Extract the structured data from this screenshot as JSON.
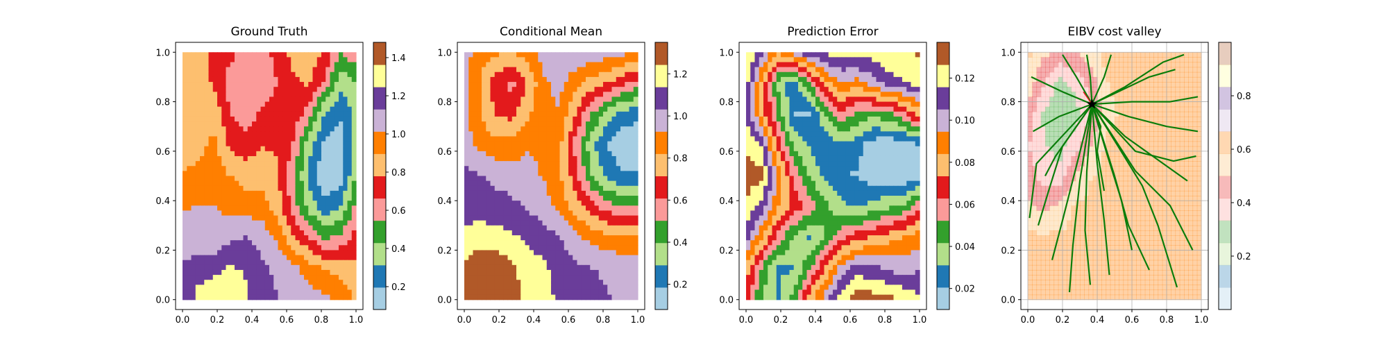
{
  "chart_data": [
    {
      "type": "heatmap",
      "title": "Ground Truth",
      "xlabel": "",
      "ylabel": "",
      "xlim": [
        0,
        1
      ],
      "ylim": [
        0,
        1
      ],
      "xticks": [
        "0.0",
        "0.2",
        "0.4",
        "0.6",
        "0.8",
        "1.0"
      ],
      "yticks": [
        "0.0",
        "0.2",
        "0.4",
        "0.6",
        "0.8",
        "1.0"
      ],
      "colormap": "Paired",
      "colorbar": {
        "range": [
          0.08,
          1.48
        ],
        "ticks": [
          "0.2",
          "0.4",
          "0.6",
          "0.8",
          "1.0",
          "1.2",
          "1.4"
        ],
        "tick_values": [
          0.2,
          0.4,
          0.6,
          0.8,
          1.0,
          1.2,
          1.4
        ]
      },
      "field": [
        [
          0.82,
          0.9,
          0.68,
          0.7,
          0.62,
          0.58,
          0.72,
          0.82,
          0.84,
          0.78,
          0.54,
          0.64
        ],
        [
          0.8,
          0.86,
          0.76,
          0.62,
          0.56,
          0.6,
          0.66,
          0.76,
          0.8,
          0.64,
          0.34,
          0.44
        ],
        [
          0.8,
          0.84,
          0.88,
          0.66,
          0.6,
          0.68,
          0.7,
          0.72,
          0.62,
          0.3,
          0.2,
          0.36
        ],
        [
          0.82,
          0.86,
          0.92,
          0.76,
          0.72,
          0.78,
          0.76,
          0.66,
          0.36,
          0.16,
          0.14,
          0.38
        ],
        [
          0.9,
          0.94,
          0.96,
          0.9,
          0.84,
          0.84,
          0.8,
          0.58,
          0.3,
          0.1,
          0.12,
          0.44
        ],
        [
          1.0,
          1.02,
          1.02,
          0.98,
          0.96,
          0.96,
          0.84,
          0.62,
          0.38,
          0.24,
          0.3,
          0.58
        ],
        [
          1.08,
          1.06,
          1.04,
          1.1,
          1.14,
          1.08,
          1.0,
          0.8,
          0.68,
          0.52,
          0.58,
          0.72
        ],
        [
          1.14,
          1.18,
          1.22,
          1.26,
          1.24,
          1.16,
          1.1,
          1.06,
          0.94,
          0.9,
          0.86,
          0.8
        ],
        [
          1.12,
          1.3,
          1.32,
          1.28,
          1.26,
          1.18,
          1.14,
          1.1,
          1.08,
          1.04,
          0.98,
          0.88
        ]
      ]
    },
    {
      "type": "heatmap",
      "title": "Conditional Mean",
      "xlabel": "",
      "ylabel": "",
      "xlim": [
        0,
        1
      ],
      "ylim": [
        0,
        1
      ],
      "xticks": [
        "0.0",
        "0.2",
        "0.4",
        "0.6",
        "0.8",
        "1.0"
      ],
      "yticks": [
        "0.0",
        "0.2",
        "0.4",
        "0.6",
        "0.8",
        "1.0"
      ],
      "colormap": "Paired",
      "colorbar": {
        "range": [
          0.08,
          1.35
        ],
        "ticks": [
          "0.2",
          "0.4",
          "0.6",
          "0.8",
          "1.0",
          "1.2"
        ],
        "tick_values": [
          0.2,
          0.4,
          0.6,
          0.8,
          1.0,
          1.2
        ]
      },
      "field": [
        [
          0.98,
          0.86,
          0.84,
          0.82,
          0.86,
          0.98,
          1.04,
          1.02,
          1.0,
          0.98,
          0.96,
          0.92
        ],
        [
          0.96,
          0.82,
          0.66,
          0.58,
          0.72,
          0.9,
          0.96,
          0.86,
          0.78,
          0.72,
          0.64,
          0.56
        ],
        [
          0.96,
          0.82,
          0.7,
          0.68,
          0.8,
          0.9,
          0.92,
          0.72,
          0.52,
          0.36,
          0.24,
          0.22
        ],
        [
          0.98,
          0.9,
          0.86,
          0.86,
          0.92,
          0.9,
          0.86,
          0.58,
          0.34,
          0.18,
          0.12,
          0.1
        ],
        [
          1.06,
          1.04,
          1.0,
          0.98,
          0.96,
          0.92,
          0.84,
          0.66,
          0.42,
          0.26,
          0.2,
          0.2
        ],
        [
          1.1,
          1.1,
          1.08,
          1.06,
          1.02,
          0.98,
          0.9,
          0.78,
          0.66,
          0.56,
          0.52,
          0.54
        ],
        [
          1.16,
          1.18,
          1.18,
          1.16,
          1.12,
          1.08,
          1.04,
          0.96,
          0.9,
          0.86,
          0.84,
          0.84
        ],
        [
          1.26,
          1.36,
          1.34,
          1.26,
          1.2,
          1.16,
          1.1,
          1.06,
          1.04,
          1.02,
          1.0,
          0.98
        ],
        [
          1.3,
          1.42,
          1.4,
          1.3,
          1.22,
          1.18,
          1.12,
          1.08,
          1.06,
          1.04,
          1.02,
          1.0
        ]
      ]
    },
    {
      "type": "heatmap",
      "title": "Prediction Error",
      "xlabel": "",
      "ylabel": "",
      "xlim": [
        0,
        1
      ],
      "ylim": [
        0,
        1
      ],
      "xticks": [
        "0.0",
        "0.2",
        "0.4",
        "0.6",
        "0.8",
        "1.0"
      ],
      "yticks": [
        "0.0",
        "0.2",
        "0.4",
        "0.6",
        "0.8",
        "1.0"
      ],
      "colormap": "Paired",
      "colorbar": {
        "range": [
          0.01,
          0.137
        ],
        "ticks": [
          "0.02",
          "0.04",
          "0.06",
          "0.08",
          "0.10",
          "0.12"
        ],
        "tick_values": [
          0.02,
          0.04,
          0.06,
          0.08,
          0.1,
          0.12
        ]
      },
      "field": [
        [
          0.13,
          0.11,
          0.085,
          0.1,
          0.115,
          0.118,
          0.12,
          0.122,
          0.12,
          0.125,
          0.125,
          0.128
        ],
        [
          0.12,
          0.08,
          0.04,
          0.025,
          0.05,
          0.08,
          0.095,
          0.09,
          0.1,
          0.11,
          0.115,
          0.12
        ],
        [
          0.115,
          0.08,
          0.05,
          0.02,
          0.02,
          0.04,
          0.06,
          0.05,
          0.045,
          0.05,
          0.06,
          0.08
        ],
        [
          0.125,
          0.115,
          0.07,
          0.04,
          0.03,
          0.02,
          0.03,
          0.025,
          0.015,
          0.012,
          0.014,
          0.02
        ],
        [
          0.132,
          0.13,
          0.095,
          0.06,
          0.04,
          0.03,
          0.02,
          0.02,
          0.015,
          0.012,
          0.012,
          0.018
        ],
        [
          0.125,
          0.11,
          0.085,
          0.07,
          0.06,
          0.045,
          0.035,
          0.03,
          0.035,
          0.04,
          0.045,
          0.06
        ],
        [
          0.11,
          0.085,
          0.06,
          0.04,
          0.03,
          0.04,
          0.06,
          0.07,
          0.075,
          0.08,
          0.085,
          0.09
        ],
        [
          0.08,
          0.05,
          0.03,
          0.03,
          0.05,
          0.075,
          0.1,
          0.11,
          0.108,
          0.104,
          0.1,
          0.105
        ],
        [
          0.07,
          0.04,
          0.03,
          0.045,
          0.08,
          0.1,
          0.12,
          0.135,
          0.132,
          0.13,
          0.125,
          0.118
        ]
      ]
    },
    {
      "type": "heatmap",
      "title": "EIBV cost valley",
      "xlabel": "",
      "ylabel": "",
      "xlim": [
        0,
        1
      ],
      "ylim": [
        0,
        1
      ],
      "xticks": [
        "0.0",
        "0.2",
        "0.4",
        "0.6",
        "0.8",
        "1.0"
      ],
      "yticks": [
        "0.0",
        "0.2",
        "0.4",
        "0.6",
        "0.8",
        "1.0"
      ],
      "colormap": "Paired",
      "cell_alpha": 0.35,
      "grid": true,
      "colorbar": {
        "range": [
          0.0,
          1.0
        ],
        "ticks": [
          "0.2",
          "0.4",
          "0.6",
          "0.8"
        ],
        "tick_values": [
          0.2,
          0.4,
          0.6,
          0.8
        ]
      },
      "field": [
        [
          0.6,
          0.52,
          0.48,
          0.5,
          0.55,
          0.62,
          0.66,
          0.64,
          0.6,
          0.6,
          0.6,
          0.6
        ],
        [
          0.56,
          0.42,
          0.3,
          0.36,
          0.45,
          0.58,
          0.62,
          0.6,
          0.6,
          0.6,
          0.6,
          0.6
        ],
        [
          0.48,
          0.32,
          0.28,
          0.3,
          0.42,
          0.55,
          0.6,
          0.6,
          0.6,
          0.6,
          0.6,
          0.6
        ],
        [
          0.42,
          0.34,
          0.3,
          0.38,
          0.5,
          0.6,
          0.6,
          0.6,
          0.6,
          0.6,
          0.6,
          0.6
        ],
        [
          0.46,
          0.38,
          0.36,
          0.5,
          0.58,
          0.6,
          0.6,
          0.6,
          0.6,
          0.6,
          0.6,
          0.6
        ],
        [
          0.52,
          0.48,
          0.52,
          0.6,
          0.6,
          0.6,
          0.6,
          0.6,
          0.6,
          0.6,
          0.6,
          0.6
        ],
        [
          0.6,
          0.6,
          0.6,
          0.6,
          0.6,
          0.6,
          0.6,
          0.6,
          0.6,
          0.6,
          0.6,
          0.6
        ],
        [
          0.6,
          0.6,
          0.6,
          0.6,
          0.6,
          0.6,
          0.6,
          0.6,
          0.6,
          0.6,
          0.6,
          0.6
        ],
        [
          0.6,
          0.6,
          0.6,
          0.6,
          0.6,
          0.6,
          0.6,
          0.6,
          0.6,
          0.6,
          0.6,
          0.6
        ]
      ],
      "marker": {
        "symbol": "star",
        "x": 0.37,
        "y": 0.79,
        "color": "#000000"
      },
      "path_color": "#0a7d0a",
      "trajectories": [
        [
          [
            0.37,
            0.79
          ],
          [
            0.05,
            0.55
          ],
          [
            0.01,
            0.33
          ]
        ],
        [
          [
            0.37,
            0.79
          ],
          [
            0.2,
            0.62
          ],
          [
            0.12,
            0.44
          ],
          [
            0.06,
            0.3
          ]
        ],
        [
          [
            0.37,
            0.79
          ],
          [
            0.28,
            0.54
          ],
          [
            0.2,
            0.32
          ],
          [
            0.14,
            0.16
          ]
        ],
        [
          [
            0.37,
            0.79
          ],
          [
            0.3,
            0.48
          ],
          [
            0.26,
            0.22
          ],
          [
            0.24,
            0.03
          ]
        ],
        [
          [
            0.37,
            0.79
          ],
          [
            0.34,
            0.52
          ],
          [
            0.33,
            0.28
          ],
          [
            0.36,
            0.06
          ]
        ],
        [
          [
            0.37,
            0.79
          ],
          [
            0.4,
            0.55
          ],
          [
            0.44,
            0.32
          ],
          [
            0.47,
            0.1
          ]
        ],
        [
          [
            0.37,
            0.79
          ],
          [
            0.46,
            0.58
          ],
          [
            0.54,
            0.4
          ],
          [
            0.6,
            0.2
          ]
        ],
        [
          [
            0.37,
            0.79
          ],
          [
            0.52,
            0.62
          ],
          [
            0.66,
            0.46
          ],
          [
            0.75,
            0.3
          ],
          [
            0.86,
            0.05
          ]
        ],
        [
          [
            0.37,
            0.79
          ],
          [
            0.56,
            0.66
          ],
          [
            0.72,
            0.58
          ],
          [
            0.92,
            0.48
          ]
        ],
        [
          [
            0.37,
            0.79
          ],
          [
            0.58,
            0.74
          ],
          [
            0.8,
            0.7
          ],
          [
            0.98,
            0.68
          ]
        ],
        [
          [
            0.37,
            0.79
          ],
          [
            0.6,
            0.8
          ],
          [
            0.82,
            0.8
          ],
          [
            0.98,
            0.82
          ]
        ],
        [
          [
            0.37,
            0.79
          ],
          [
            0.56,
            0.86
          ],
          [
            0.78,
            0.96
          ],
          [
            0.9,
            0.99
          ]
        ],
        [
          [
            0.37,
            0.79
          ],
          [
            0.44,
            0.9
          ],
          [
            0.48,
            0.99
          ]
        ],
        [
          [
            0.37,
            0.79
          ],
          [
            0.36,
            0.9
          ],
          [
            0.34,
            0.99
          ]
        ],
        [
          [
            0.37,
            0.79
          ],
          [
            0.28,
            0.9
          ],
          [
            0.2,
            0.99
          ]
        ],
        [
          [
            0.37,
            0.79
          ],
          [
            0.2,
            0.84
          ],
          [
            0.02,
            0.9
          ]
        ],
        [
          [
            0.37,
            0.79
          ],
          [
            0.18,
            0.74
          ],
          [
            0.03,
            0.68
          ]
        ],
        [
          [
            0.37,
            0.79
          ],
          [
            0.24,
            0.66
          ],
          [
            0.16,
            0.58
          ],
          [
            0.1,
            0.5
          ]
        ],
        [
          [
            0.37,
            0.79
          ],
          [
            0.5,
            0.5
          ],
          [
            0.58,
            0.3
          ],
          [
            0.7,
            0.12
          ]
        ],
        [
          [
            0.37,
            0.79
          ],
          [
            0.62,
            0.52
          ],
          [
            0.82,
            0.38
          ],
          [
            0.95,
            0.2
          ]
        ],
        [
          [
            0.37,
            0.79
          ],
          [
            0.42,
            0.7
          ],
          [
            0.4,
            0.6
          ],
          [
            0.44,
            0.44
          ]
        ],
        [
          [
            0.37,
            0.79
          ],
          [
            0.62,
            0.6
          ],
          [
            0.84,
            0.56
          ],
          [
            0.97,
            0.58
          ]
        ],
        [
          [
            0.37,
            0.79
          ],
          [
            0.7,
            0.9
          ],
          [
            0.85,
            0.93
          ]
        ]
      ]
    }
  ]
}
